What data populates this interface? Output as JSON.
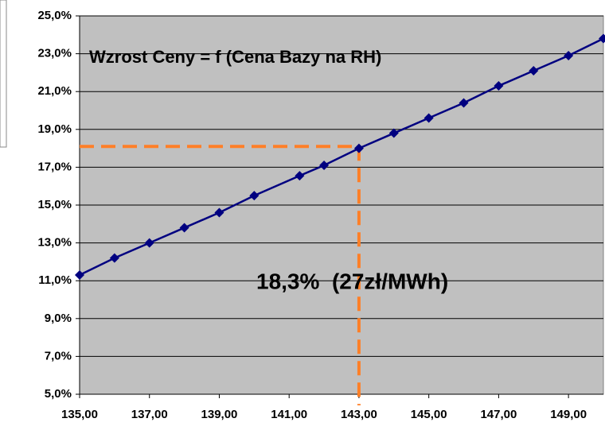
{
  "chart_data": {
    "type": "line",
    "title": "Wzrost Ceny = f (Cena Bazy na RH)",
    "annotation": "18,3%  (27zł/MWh)",
    "x": [
      135,
      136,
      137,
      138,
      139,
      140,
      141.3,
      142,
      143,
      144,
      145,
      146,
      147,
      148,
      149,
      150
    ],
    "series": [
      {
        "color": "#000080",
        "values": [
          11.3,
          12.2,
          13.0,
          13.8,
          14.6,
          15.5,
          16.55,
          17.1,
          18.0,
          18.8,
          19.6,
          20.4,
          21.3,
          22.1,
          22.9,
          23.8
        ]
      }
    ],
    "guide": {
      "x": 143,
      "y": 18.1,
      "color": "#ff7f27"
    },
    "xlim": [
      135,
      150
    ],
    "xticks": [
      {
        "value": 135,
        "label": "135,00"
      },
      {
        "value": 137,
        "label": "137,00"
      },
      {
        "value": 139,
        "label": "139,00"
      },
      {
        "value": 141,
        "label": "141,00"
      },
      {
        "value": 143,
        "label": "143,00"
      },
      {
        "value": 145,
        "label": "145,00"
      },
      {
        "value": 147,
        "label": "147,00"
      },
      {
        "value": 149,
        "label": "149,00"
      }
    ],
    "ylim": [
      5,
      25
    ],
    "yticks": [
      {
        "value": 5,
        "label": "5,0%"
      },
      {
        "value": 7,
        "label": "7,0%"
      },
      {
        "value": 9,
        "label": "9,0%"
      },
      {
        "value": 11,
        "label": "11,0%"
      },
      {
        "value": 13,
        "label": "13,0%"
      },
      {
        "value": 15,
        "label": "15,0%"
      },
      {
        "value": 17,
        "label": "17,0%"
      },
      {
        "value": 19,
        "label": "19,0%"
      },
      {
        "value": 21,
        "label": "21,0%"
      },
      {
        "value": 23,
        "label": "23,0%"
      },
      {
        "value": 25,
        "label": "25,0%"
      }
    ],
    "grid": true,
    "background": "#c0c0c0"
  }
}
